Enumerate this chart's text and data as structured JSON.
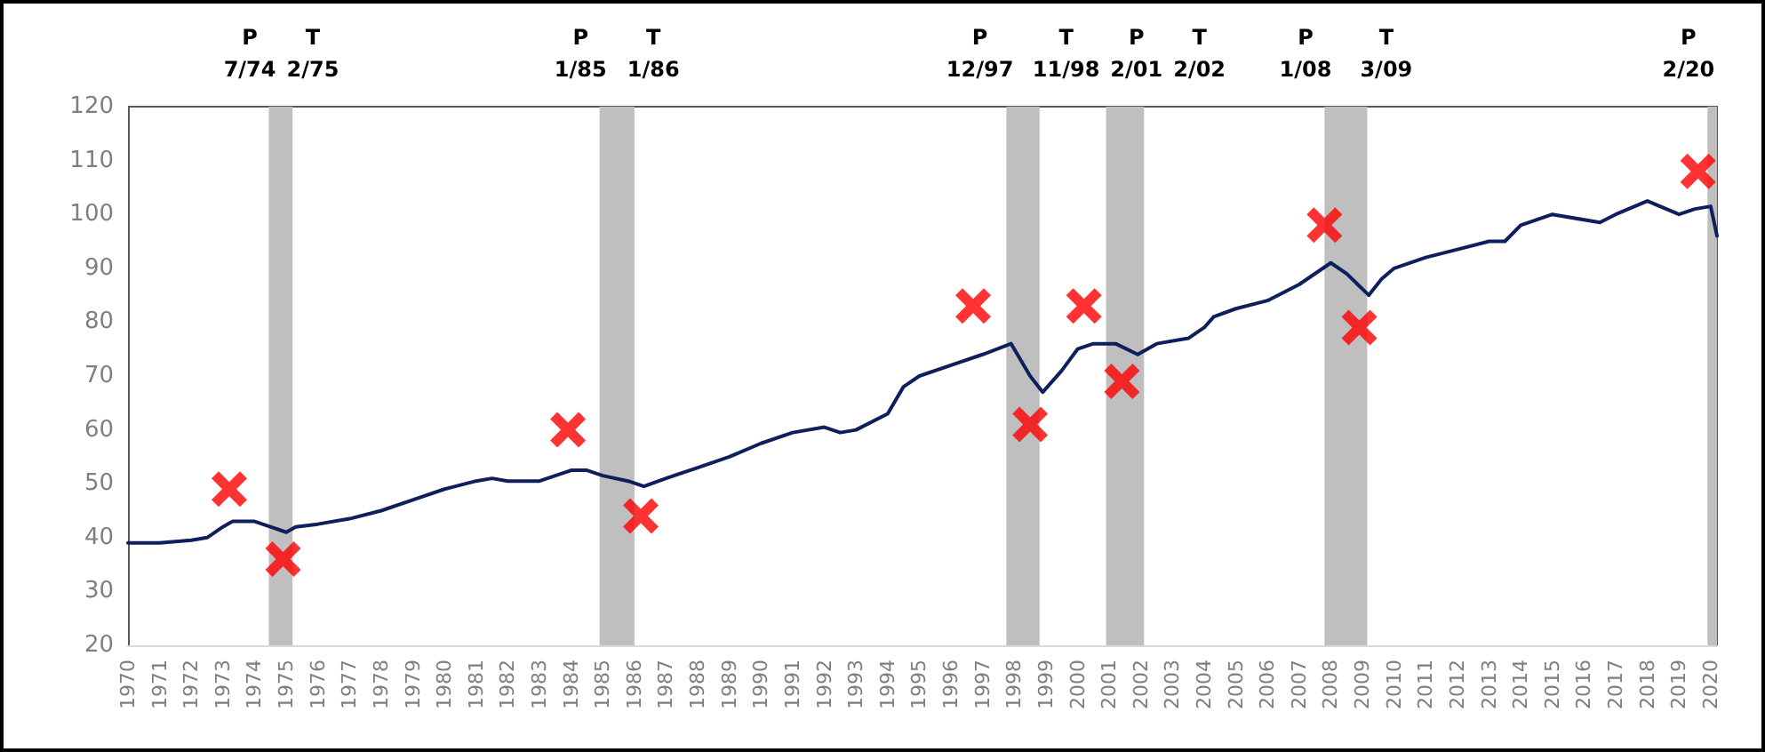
{
  "chart_data": {
    "type": "line",
    "xlim": [
      1970,
      2020.2
    ],
    "xticks": [
      1970,
      1971,
      1972,
      1973,
      1974,
      1975,
      1976,
      1977,
      1978,
      1979,
      1980,
      1981,
      1982,
      1983,
      1984,
      1985,
      1986,
      1987,
      1988,
      1989,
      1990,
      1991,
      1992,
      1993,
      1994,
      1995,
      1996,
      1997,
      1998,
      1999,
      2000,
      2001,
      2002,
      2003,
      2004,
      2005,
      2006,
      2007,
      2008,
      2009,
      2010,
      2011,
      2012,
      2013,
      2014,
      2015,
      2016,
      2017,
      2018,
      2019,
      2020
    ],
    "ylim": [
      20,
      120
    ],
    "yticks": [
      20,
      30,
      40,
      50,
      60,
      70,
      80,
      90,
      100,
      110,
      120
    ],
    "grid": false,
    "series": [
      {
        "color": "#0d1f5c",
        "marker": "none",
        "line_style": "solid",
        "x": [
          1970,
          1971,
          1972,
          1972.5,
          1973,
          1973.3,
          1974,
          1974.5,
          1975,
          1975.3,
          1976,
          1977,
          1978,
          1979,
          1980,
          1981,
          1981.5,
          1982,
          1983,
          1984,
          1984.5,
          1985,
          1985.8,
          1986.3,
          1987,
          1988,
          1989,
          1990,
          1991,
          1992,
          1992.5,
          1993,
          1994,
          1994.5,
          1995,
          1996,
          1997,
          1997.9,
          1998.5,
          1998.9,
          1999.5,
          2000,
          2000.5,
          2001.2,
          2001.9,
          2002.5,
          2003.5,
          2004,
          2004.3,
          2005,
          2006,
          2007,
          2008,
          2008.5,
          2009.2,
          2009.6,
          2010,
          2011,
          2012,
          2013,
          2013.5,
          2014,
          2015,
          2016,
          2016.5,
          2017,
          2018,
          2019,
          2019.5,
          2020,
          2020.2
        ],
        "values": [
          39,
          39,
          39.5,
          40,
          42,
          43,
          43,
          42,
          41,
          42,
          42.5,
          43.5,
          45,
          47,
          49,
          50.5,
          51,
          50.5,
          50.5,
          52.5,
          52.5,
          51.5,
          50.5,
          49.5,
          51,
          53,
          55,
          57.5,
          59.5,
          60.5,
          59.5,
          60,
          63,
          68,
          70,
          72,
          74,
          76,
          70,
          67,
          71,
          75,
          76,
          76,
          74,
          76,
          77,
          79,
          81,
          82.5,
          84,
          87,
          91,
          89,
          85,
          88,
          90,
          92,
          93.5,
          95,
          95,
          98,
          100,
          99,
          98.5,
          100,
          102.5,
          100,
          101,
          101.5,
          96
        ]
      },
      {
        "type": "scatter",
        "color": "#ff0000",
        "marker": "cross",
        "x": [
          1973.2,
          1974.9,
          1983.9,
          1986.2,
          1996.7,
          1998.5,
          2000.2,
          2001.4,
          2007.8,
          2008.9,
          2019.6
        ],
        "values": [
          49,
          36,
          60,
          44,
          83,
          61,
          83,
          69,
          98,
          79,
          108
        ]
      }
    ],
    "bands": [
      {
        "axis": "x",
        "from": 1974.45,
        "to": 1975.2,
        "color": "#bfbfbf"
      },
      {
        "axis": "x",
        "from": 1984.9,
        "to": 1986.0,
        "color": "#bfbfbf"
      },
      {
        "axis": "x",
        "from": 1997.75,
        "to": 1998.8,
        "color": "#bfbfbf"
      },
      {
        "axis": "x",
        "from": 2000.9,
        "to": 2002.1,
        "color": "#bfbfbf"
      },
      {
        "axis": "x",
        "from": 2007.8,
        "to": 2009.15,
        "color": "#bfbfbf"
      },
      {
        "axis": "x",
        "from": 2019.9,
        "to": 2020.2,
        "color": "#bfbfbf"
      }
    ],
    "annotations": [
      "P\n7/74",
      "T\n2/75",
      "P\n1/85",
      "T\n1/86",
      "P\n12/97",
      "T\n11/98",
      "P\n2/01",
      "T\n2/02",
      "P\n1/08",
      "T\n3/09",
      "P\n2/20"
    ]
  }
}
